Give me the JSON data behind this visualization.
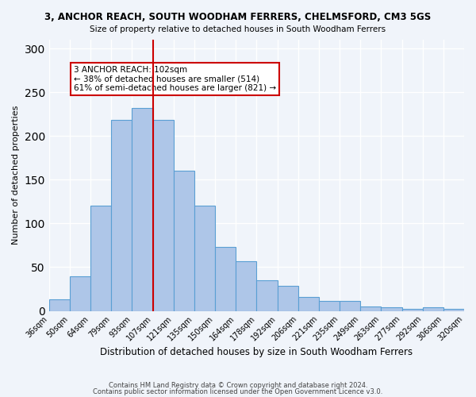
{
  "title1": "3, ANCHOR REACH, SOUTH WOODHAM FERRERS, CHELMSFORD, CM3 5GS",
  "title2": "Size of property relative to detached houses in South Woodham Ferrers",
  "xlabel": "Distribution of detached houses by size in South Woodham Ferrers",
  "ylabel": "Number of detached properties",
  "bin_labels": [
    "36sqm",
    "50sqm",
    "64sqm",
    "79sqm",
    "93sqm",
    "107sqm",
    "121sqm",
    "135sqm",
    "150sqm",
    "164sqm",
    "178sqm",
    "192sqm",
    "206sqm",
    "221sqm",
    "235sqm",
    "249sqm",
    "263sqm",
    "277sqm",
    "292sqm",
    "306sqm",
    "320sqm"
  ],
  "bar_values": [
    13,
    40,
    120,
    218,
    232,
    218,
    160,
    120,
    73,
    57,
    35,
    29,
    16,
    11,
    11,
    5,
    4,
    2,
    4,
    2
  ],
  "bar_color": "#aec6e8",
  "bar_edge_color": "#5a9fd4",
  "ylim": [
    0,
    310
  ],
  "yticks": [
    0,
    50,
    100,
    150,
    200,
    250,
    300
  ],
  "property_size": 102,
  "vline_bin_index": 5,
  "annotation_title": "3 ANCHOR REACH: 102sqm",
  "annotation_line1": "← 38% of detached houses are smaller (514)",
  "annotation_line2": "61% of semi-detached houses are larger (821) →",
  "annotation_box_color": "#ffffff",
  "annotation_box_edge": "#cc0000",
  "vline_color": "#cc0000",
  "footer1": "Contains HM Land Registry data © Crown copyright and database right 2024.",
  "footer2": "Contains public sector information licensed under the Open Government Licence v3.0.",
  "background_color": "#f0f4fa",
  "grid_color": "#ffffff"
}
